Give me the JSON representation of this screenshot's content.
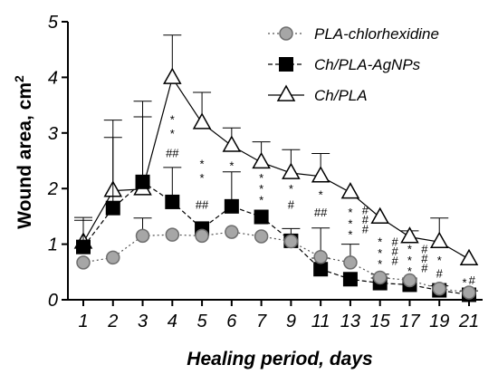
{
  "chart_data": {
    "type": "line",
    "xlabel": "Healing period, days",
    "ylabel_main": "Wound area, cm",
    "ylabel_sup": "2",
    "categories": [
      "1",
      "2",
      "3",
      "4",
      "5",
      "6",
      "7",
      "9",
      "11",
      "13",
      "15",
      "17",
      "19",
      "21"
    ],
    "ylim": [
      0,
      5
    ],
    "yticks": [
      "0",
      "1",
      "2",
      "3",
      "4",
      "5"
    ],
    "legend_position": "top-right",
    "series": [
      {
        "name": "PLA-chlorhexidine",
        "marker": "circle",
        "line": "dotted",
        "color": "#999999",
        "values": [
          0.67,
          0.76,
          1.15,
          1.17,
          1.15,
          1.22,
          1.14,
          1.05,
          0.77,
          0.67,
          0.4,
          0.35,
          0.2,
          0.13
        ],
        "err": [
          0,
          0,
          0.32,
          0,
          0,
          0,
          0,
          0,
          0.52,
          0.33,
          0.06,
          0,
          0,
          0
        ]
      },
      {
        "name": "Ch/PLA-AgNPs",
        "marker": "square",
        "line": "dashed",
        "color": "#000000",
        "values": [
          0.95,
          1.65,
          2.12,
          1.76,
          1.28,
          1.68,
          1.49,
          1.06,
          0.55,
          0.37,
          0.3,
          0.27,
          0.17,
          0.09
        ],
        "err": [
          0.48,
          1.27,
          1.17,
          0.62,
          0,
          0.62,
          0,
          0.22,
          0.2,
          0,
          0.09,
          0,
          0.08,
          0.07
        ]
      },
      {
        "name": "Ch/PLA",
        "marker": "triangle",
        "line": "solid",
        "color": "#000000",
        "values": [
          1.03,
          1.96,
          1.99,
          3.99,
          3.18,
          2.77,
          2.47,
          2.28,
          2.22,
          1.93,
          1.48,
          1.13,
          1.04,
          0.73
        ],
        "err": [
          0.45,
          1.27,
          1.58,
          0.77,
          0.55,
          0.32,
          0.37,
          0.42,
          0.41,
          0,
          0,
          0.11,
          0.43,
          0
        ]
      }
    ],
    "significance_marks": [
      {
        "cat_index": 3,
        "symbol": "*",
        "y": 3.25
      },
      {
        "cat_index": 3,
        "symbol": "*",
        "y": 3.0
      },
      {
        "cat_index": 3,
        "symbol": "##",
        "y": 2.65
      },
      {
        "cat_index": 4,
        "symbol": "*",
        "y": 2.45
      },
      {
        "cat_index": 4,
        "symbol": "*",
        "y": 2.2
      },
      {
        "cat_index": 4,
        "symbol": "##",
        "y": 1.72
      },
      {
        "cat_index": 5,
        "symbol": "*",
        "y": 2.42
      },
      {
        "cat_index": 6,
        "symbol": "*",
        "y": 2.2
      },
      {
        "cat_index": 6,
        "symbol": "*",
        "y": 2.0
      },
      {
        "cat_index": 6,
        "symbol": "*",
        "y": 1.8
      },
      {
        "cat_index": 7,
        "symbol": "*",
        "y": 2.0
      },
      {
        "cat_index": 7,
        "symbol": "#",
        "y": 1.72
      },
      {
        "cat_index": 8,
        "symbol": "*",
        "y": 1.9
      },
      {
        "cat_index": 8,
        "symbol": "##",
        "y": 1.58
      },
      {
        "cat_index": 9,
        "symbol": "*",
        "y": 1.58
      },
      {
        "cat_index": 9,
        "symbol": "*",
        "y": 1.38
      },
      {
        "cat_index": 9,
        "symbol": "*",
        "y": 1.18
      },
      {
        "cat_index": 9.5,
        "symbol": "#",
        "y": 1.62
      },
      {
        "cat_index": 9.5,
        "symbol": "#",
        "y": 1.45
      },
      {
        "cat_index": 9.5,
        "symbol": "#",
        "y": 1.28
      },
      {
        "cat_index": 10,
        "symbol": "*",
        "y": 1.05
      },
      {
        "cat_index": 10,
        "symbol": "*",
        "y": 0.85
      },
      {
        "cat_index": 10,
        "symbol": "*",
        "y": 0.65
      },
      {
        "cat_index": 10.5,
        "symbol": "#",
        "y": 1.05
      },
      {
        "cat_index": 10.5,
        "symbol": "#",
        "y": 0.88
      },
      {
        "cat_index": 10.5,
        "symbol": "#",
        "y": 0.71
      },
      {
        "cat_index": 11,
        "symbol": "*",
        "y": 0.92
      },
      {
        "cat_index": 11,
        "symbol": "*",
        "y": 0.72
      },
      {
        "cat_index": 11,
        "symbol": "*",
        "y": 0.52
      },
      {
        "cat_index": 11.5,
        "symbol": "#",
        "y": 0.92
      },
      {
        "cat_index": 11.5,
        "symbol": "#",
        "y": 0.75
      },
      {
        "cat_index": 11.5,
        "symbol": "#",
        "y": 0.58
      },
      {
        "cat_index": 12,
        "symbol": "*",
        "y": 0.72
      },
      {
        "cat_index": 12,
        "symbol": "#",
        "y": 0.48
      },
      {
        "cat_index": 12.85,
        "symbol": "*",
        "y": 0.32
      },
      {
        "cat_index": 13.1,
        "symbol": "#",
        "y": 0.36
      }
    ]
  }
}
